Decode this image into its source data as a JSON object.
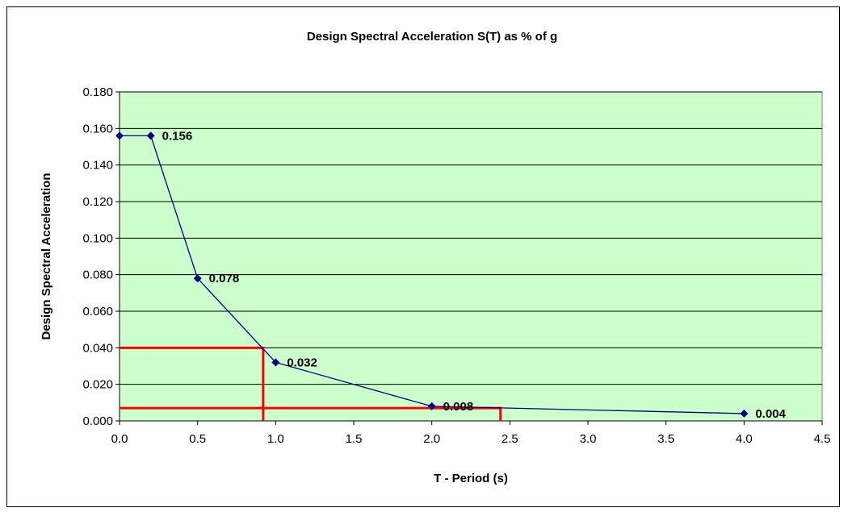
{
  "chart_data": {
    "type": "line",
    "title": "Design Spectral Acceleration S(T) as % of g",
    "xlabel": "T - Period (s)",
    "ylabel": "Design Spectral Acceleration",
    "xlim": [
      0,
      4.5
    ],
    "ylim": [
      0,
      0.18
    ],
    "x_ticks": [
      "0.0",
      "0.5",
      "1.0",
      "1.5",
      "2.0",
      "2.5",
      "3.0",
      "3.5",
      "4.0",
      "4.5"
    ],
    "y_ticks": [
      "0.000",
      "0.020",
      "0.040",
      "0.060",
      "0.080",
      "0.100",
      "0.120",
      "0.140",
      "0.160",
      "0.180"
    ],
    "grid": "horizontal",
    "legend": "none",
    "plot_background": "#ccffcc",
    "series": [
      {
        "color": "#000080",
        "marker": "diamond",
        "points": [
          {
            "x": 0.0,
            "y": 0.156,
            "label": ""
          },
          {
            "x": 0.2,
            "y": 0.156,
            "label": "0.156"
          },
          {
            "x": 0.5,
            "y": 0.078,
            "label": "0.078"
          },
          {
            "x": 1.0,
            "y": 0.032,
            "label": "0.032"
          },
          {
            "x": 2.0,
            "y": 0.008,
            "label": "0.008"
          },
          {
            "x": 4.0,
            "y": 0.004,
            "label": "0.004"
          }
        ]
      }
    ],
    "annotations": [
      {
        "type": "reference-lines",
        "color": "#ff0000",
        "x": 0.92,
        "y": 0.04
      },
      {
        "type": "reference-lines",
        "color": "#ff0000",
        "x": 2.44,
        "y": 0.007
      }
    ]
  }
}
